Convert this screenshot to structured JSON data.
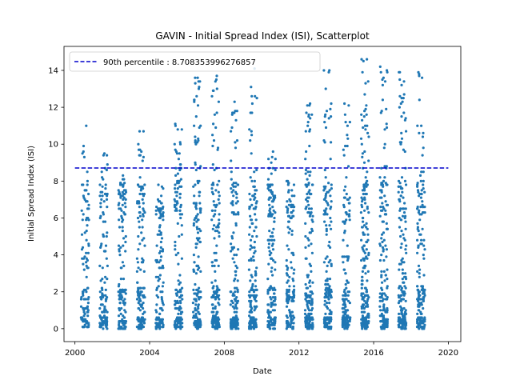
{
  "chart_data": {
    "type": "scatter",
    "title": "GAVIN - Initial Spread Index (ISI), Scatterplot",
    "xlabel": "Date",
    "ylabel": "Initial Spread Index (ISI)",
    "xlim": [
      "1999-06-01",
      "2020-09-01"
    ],
    "ylim": [
      -0.7,
      15.3
    ],
    "x_ticks": [
      "2000",
      "2004",
      "2008",
      "2012",
      "2016",
      "2020"
    ],
    "y_ticks": [
      "0",
      "2",
      "4",
      "6",
      "8",
      "10",
      "12",
      "14"
    ],
    "grid": false,
    "legend_position": "upper-left",
    "reference_line": {
      "label": "90th percentile : 8.708353996276857",
      "value": 8.708353996276857,
      "style": "dashed",
      "color": "#0000cc"
    },
    "series": [
      {
        "color": "#1f77b4",
        "seasons": [
          {
            "year": 2000,
            "max": 11.0,
            "points": 120
          },
          {
            "year": 2001,
            "max": 9.5,
            "points": 130
          },
          {
            "year": 2002,
            "max": 8.3,
            "points": 140
          },
          {
            "year": 2003,
            "max": 10.7,
            "points": 150
          },
          {
            "year": 2004,
            "max": 6.6,
            "points": 130
          },
          {
            "year": 2005,
            "max": 11.1,
            "points": 150
          },
          {
            "year": 2006,
            "max": 13.6,
            "points": 170
          },
          {
            "year": 2007,
            "max": 13.7,
            "points": 170
          },
          {
            "year": 2008,
            "max": 12.3,
            "points": 160
          },
          {
            "year": 2009,
            "max": 14.1,
            "points": 180
          },
          {
            "year": 2010,
            "max": 9.6,
            "points": 170
          },
          {
            "year": 2011,
            "max": 6.9,
            "points": 150
          },
          {
            "year": 2012,
            "max": 12.2,
            "points": 170
          },
          {
            "year": 2013,
            "max": 14.0,
            "points": 180
          },
          {
            "year": 2014,
            "max": 12.2,
            "points": 160
          },
          {
            "year": 2015,
            "max": 14.6,
            "points": 190
          },
          {
            "year": 2016,
            "max": 14.2,
            "points": 180
          },
          {
            "year": 2017,
            "max": 13.9,
            "points": 190
          },
          {
            "year": 2018,
            "max": 13.9,
            "points": 180
          }
        ]
      }
    ]
  }
}
